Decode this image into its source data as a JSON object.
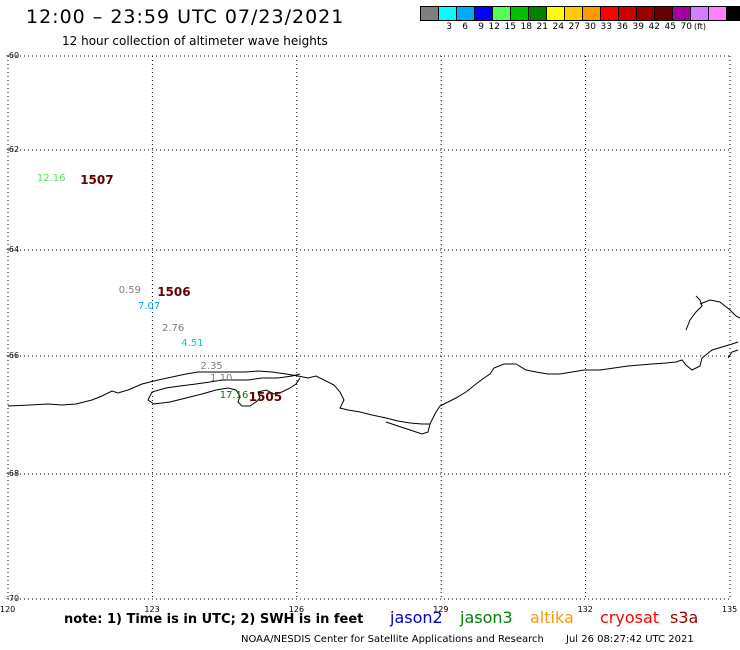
{
  "title": "12:00 – 23:59 UTC 07/23/2021",
  "subtitle": "12 hour collection of altimeter wave heights",
  "colorbar": {
    "colors": [
      "#7f7f7f",
      "#00ffff",
      "#00aaff",
      "#0000ff",
      "#55ff55",
      "#00c000",
      "#008000",
      "#ffff00",
      "#ffcc00",
      "#ff9900",
      "#ff0000",
      "#cc0000",
      "#990000",
      "#660000",
      "#a000a0",
      "#d080ff",
      "#ff80ff",
      "#000000"
    ],
    "labels": [
      "3",
      "6",
      "9",
      "12",
      "15",
      "18",
      "21",
      "24",
      "27",
      "30",
      "33",
      "36",
      "39",
      "42",
      "45",
      "70"
    ],
    "unit": "(ft)"
  },
  "axes": {
    "lat_labels": [
      "-60",
      "-62",
      "-64",
      "-66",
      "-68",
      "-70"
    ],
    "lon_labels": [
      "120",
      "123",
      "126",
      "129",
      "132",
      "135"
    ],
    "grid": "dotted"
  },
  "observations": [
    {
      "text": "12.16",
      "color": "#55dd55",
      "lon": 120.6,
      "lat": -62.6,
      "bold": false
    },
    {
      "text": "1507",
      "color": "#660000",
      "lon": 121.5,
      "lat": -62.6,
      "bold": true
    },
    {
      "text": "0.59",
      "color": "#7f7f7f",
      "lon": 122.3,
      "lat": -64.8,
      "bold": false
    },
    {
      "text": "1506",
      "color": "#660000",
      "lon": 123.1,
      "lat": -64.8,
      "bold": true
    },
    {
      "text": "7.07",
      "color": "#00aaff",
      "lon": 122.7,
      "lat": -65.1,
      "bold": false
    },
    {
      "text": "2.76",
      "color": "#7f7f7f",
      "lon": 123.2,
      "lat": -65.5,
      "bold": false
    },
    {
      "text": "4.51",
      "color": "#00cccc",
      "lon": 123.6,
      "lat": -65.8,
      "bold": false
    },
    {
      "text": "2.35",
      "color": "#7f7f7f",
      "lon": 124.0,
      "lat": -66.2,
      "bold": false
    },
    {
      "text": "1.10",
      "color": "#7f7f7f",
      "lon": 124.2,
      "lat": -66.4,
      "bold": false
    },
    {
      "text": "17.16",
      "color": "#008000",
      "lon": 124.4,
      "lat": -66.7,
      "bold": false
    },
    {
      "text": "1505",
      "color": "#660000",
      "lon": 125.0,
      "lat": -66.7,
      "bold": true
    }
  ],
  "note": "note: 1) Time is in UTC; 2) SWH is in feet",
  "satellites": [
    {
      "name": "jason2",
      "color": "#0000cc"
    },
    {
      "name": "jason3",
      "color": "#008000"
    },
    {
      "name": "altika",
      "color": "#ff9900"
    },
    {
      "name": "cryosat",
      "color": "#ff0000"
    },
    {
      "name": "s3a",
      "color": "#990000"
    }
  ],
  "credit": "NOAA/NESDIS Center for Satellite Applications and Research",
  "timestamp": "Jul 26 08:27:42 UTC 2021"
}
